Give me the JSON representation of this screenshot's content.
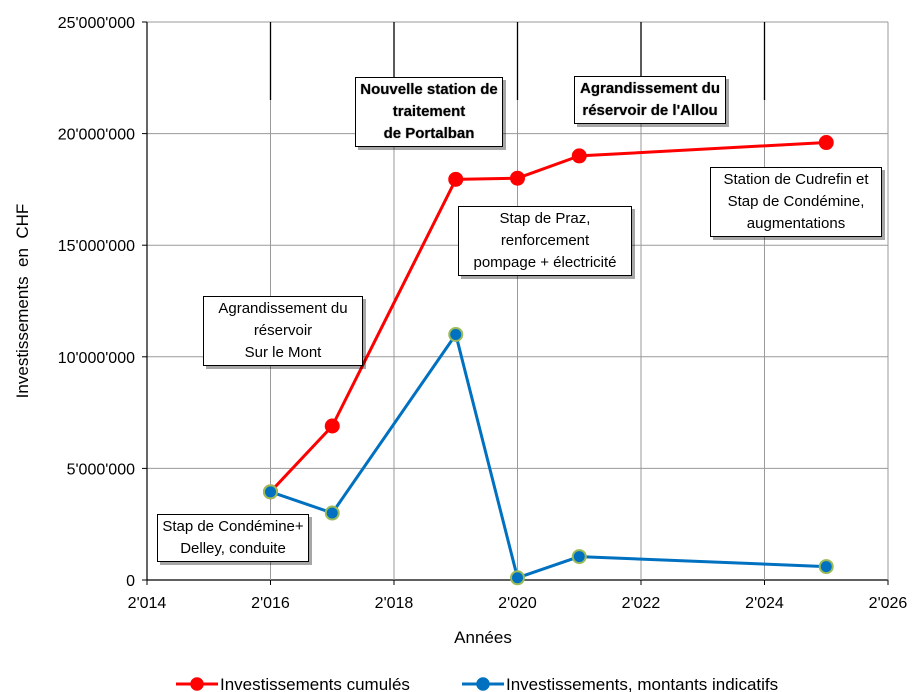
{
  "chart_data": {
    "type": "line",
    "xlabel": "Années",
    "ylabel": "Investissements  en  CHF",
    "xlim": [
      2014,
      2026
    ],
    "ylim": [
      0,
      25000000
    ],
    "x_ticks": [
      "2'014",
      "2'016",
      "2'018",
      "2'020",
      "2'022",
      "2'024",
      "2'026"
    ],
    "y_ticks": [
      "0",
      "5'000'000",
      "10'000'000",
      "15'000'000",
      "20'000'000",
      "25'000'000"
    ],
    "grid": true,
    "legend_position": "bottom",
    "series": [
      {
        "name": "Investissements cumulés",
        "color": "#ff0000",
        "marker_fill": "#ff0000",
        "points": [
          {
            "x": 2016,
            "y": 3950000
          },
          {
            "x": 2017,
            "y": 6900000
          },
          {
            "x": 2019,
            "y": 17950000
          },
          {
            "x": 2020,
            "y": 18000000
          },
          {
            "x": 2021,
            "y": 19000000
          },
          {
            "x": 2025,
            "y": 19600000
          }
        ]
      },
      {
        "name": "Investissements, montants indicatifs",
        "color": "#0070c0",
        "marker_fill": "#9bbb59",
        "points": [
          {
            "x": 2016,
            "y": 3950000
          },
          {
            "x": 2017,
            "y": 3000000
          },
          {
            "x": 2019,
            "y": 11000000
          },
          {
            "x": 2020,
            "y": 100000
          },
          {
            "x": 2021,
            "y": 1050000
          },
          {
            "x": 2025,
            "y": 600000
          }
        ]
      }
    ],
    "annotations": [
      {
        "id": "portalban",
        "text": "Nouvelle station de\ntraitement\nde Portalban",
        "bold": true
      },
      {
        "id": "allou",
        "text": "Agrandissement du\nréservoir de l'Allou",
        "bold": true
      },
      {
        "id": "cudrefin",
        "text": "Station de Cudrefin et\nStap de Condémine,\naugmentations",
        "bold": false
      },
      {
        "id": "praz",
        "text": "Stap de Praz,\nrenforcement\npompage + électricité",
        "bold": false
      },
      {
        "id": "surlemont",
        "text": "Agrandissement du\nréservoir\nSur le Mont",
        "bold": false
      },
      {
        "id": "condemine",
        "text": "Stap de Condémine+\nDelley, conduite",
        "bold": false
      }
    ]
  }
}
